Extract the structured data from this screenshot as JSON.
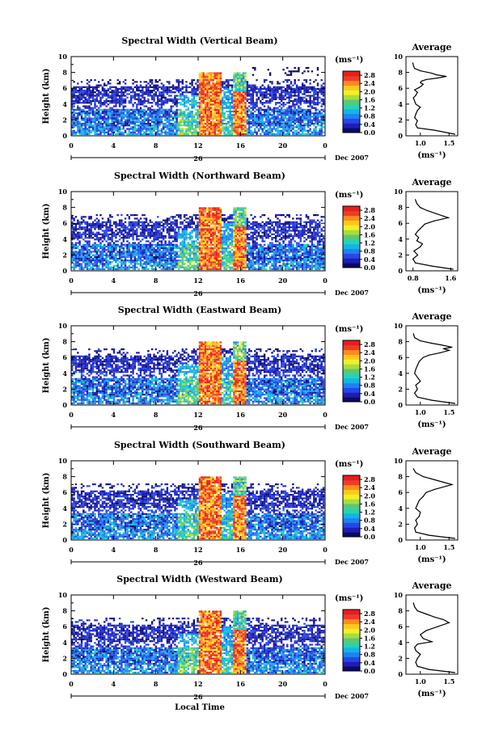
{
  "chart_data": [
    {
      "type": "heatmap",
      "title": "Spectral Width (Vertical Beam)",
      "ylabel": "Height (km)",
      "unit_label": "(ms⁻¹)",
      "date_label": "Dec 2007",
      "day_label": "26",
      "x_ticks": [
        "0",
        "4",
        "8",
        "12",
        "16",
        "20",
        "0"
      ],
      "y_ticks": [
        "0",
        "2",
        "4",
        "6",
        "8",
        "10"
      ],
      "xlim": [
        0,
        24
      ],
      "ylim": [
        0,
        10
      ],
      "colorbar": {
        "ticks": [
          "0.0",
          "0.4",
          "0.8",
          "1.2",
          "1.6",
          "2.0",
          "2.4",
          "2.8"
        ],
        "range": [
          0,
          3.0
        ]
      },
      "average_profile": {
        "title": "Average",
        "xlabel": "(ms⁻¹)",
        "x_ticks": [
          "1.0",
          "1.5"
        ],
        "y_ticks": [
          "0",
          "2",
          "4",
          "6",
          "8",
          "10"
        ],
        "xlim": [
          0.75,
          1.65
        ],
        "ylim": [
          0,
          10
        ],
        "x": [
          1.6,
          1.25,
          0.95,
          0.92,
          0.95,
          0.9,
          0.92,
          0.95,
          1.0,
          0.92,
          0.9,
          0.88,
          0.92,
          0.95,
          0.9,
          0.98,
          1.02,
          1.05,
          1.0,
          1.02,
          1.1,
          1.3,
          1.45,
          1.28,
          1.2,
          1.0,
          0.9,
          0.88,
          0.87
        ],
        "y": [
          0.2,
          0.7,
          1.0,
          1.4,
          1.9,
          2.3,
          2.7,
          3.2,
          3.6,
          4.0,
          4.4,
          4.8,
          5.1,
          5.5,
          5.8,
          6.1,
          6.3,
          6.5,
          6.7,
          6.9,
          7.1,
          7.3,
          7.5,
          7.7,
          7.9,
          8.2,
          8.5,
          8.9,
          9.2
        ]
      }
    },
    {
      "type": "heatmap",
      "title": "Spectral Width (Northward Beam)",
      "ylabel": "Height (km)",
      "unit_label": "(ms⁻¹)",
      "date_label": "Dec 2007",
      "day_label": "26",
      "x_ticks": [
        "0",
        "4",
        "8",
        "12",
        "16",
        "20",
        "0"
      ],
      "y_ticks": [
        "0",
        "2",
        "4",
        "6",
        "8",
        "10"
      ],
      "xlim": [
        0,
        24
      ],
      "ylim": [
        0,
        10
      ],
      "colorbar": {
        "ticks": [
          "0.0",
          "0.4",
          "0.8",
          "1.2",
          "1.6",
          "2.0",
          "2.4",
          "2.8"
        ],
        "range": [
          0,
          3.0
        ]
      },
      "average_profile": {
        "title": "Average",
        "xlabel": "(ms⁻¹)",
        "x_ticks": [
          "0.8",
          "1.6"
        ],
        "y_ticks": [
          "0",
          "2",
          "4",
          "6",
          "8",
          "10"
        ],
        "xlim": [
          0.65,
          1.75
        ],
        "ylim": [
          0,
          10
        ],
        "x": [
          1.65,
          1.2,
          0.85,
          0.8,
          0.9,
          0.82,
          0.95,
          1.0,
          0.88,
          0.92,
          0.85,
          0.9,
          0.95,
          1.0,
          1.05,
          1.15,
          1.25,
          1.4,
          1.55,
          1.45,
          1.3,
          1.1,
          0.95,
          0.88,
          0.85
        ],
        "y": [
          0.2,
          0.6,
          1.0,
          1.5,
          2.0,
          2.5,
          3.0,
          3.4,
          3.8,
          4.2,
          4.6,
          5.0,
          5.3,
          5.6,
          5.9,
          6.1,
          6.3,
          6.5,
          6.7,
          6.9,
          7.2,
          7.6,
          8.0,
          8.5,
          9.0
        ]
      }
    },
    {
      "type": "heatmap",
      "title": "Spectral Width (Eastward Beam)",
      "ylabel": "Height (km)",
      "unit_label": "(ms⁻¹)",
      "date_label": "Dec 2007",
      "day_label": "26",
      "x_ticks": [
        "0",
        "4",
        "8",
        "12",
        "16",
        "20",
        "0"
      ],
      "y_ticks": [
        "0",
        "2",
        "4",
        "6",
        "8",
        "10"
      ],
      "xlim": [
        0,
        24
      ],
      "ylim": [
        0,
        10
      ],
      "colorbar": {
        "ticks": [
          "0.0",
          "0.4",
          "0.8",
          "1.2",
          "1.6",
          "2.0",
          "2.4",
          "2.8"
        ],
        "range": [
          0,
          3.0
        ]
      },
      "average_profile": {
        "title": "Average",
        "xlabel": "(ms⁻¹)",
        "x_ticks": [
          "1.0",
          "1.5"
        ],
        "y_ticks": [
          "0",
          "2",
          "4",
          "6",
          "8",
          "10"
        ],
        "xlim": [
          0.75,
          1.65
        ],
        "ylim": [
          0,
          10
        ],
        "x": [
          1.6,
          1.2,
          0.95,
          0.9,
          0.95,
          0.92,
          1.0,
          0.95,
          0.9,
          0.92,
          0.95,
          0.98,
          1.05,
          1.15,
          1.35,
          1.5,
          1.4,
          1.55,
          1.35,
          1.2,
          1.0,
          0.9,
          0.88
        ],
        "y": [
          0.2,
          0.6,
          1.0,
          1.5,
          2.0,
          2.5,
          3.0,
          3.5,
          4.0,
          4.5,
          5.0,
          5.5,
          6.0,
          6.3,
          6.6,
          6.9,
          7.1,
          7.3,
          7.6,
          7.8,
          8.1,
          8.5,
          9.0
        ]
      }
    },
    {
      "type": "heatmap",
      "title": "Spectral Width (Southward Beam)",
      "ylabel": "Height (km)",
      "unit_label": "(ms⁻¹)",
      "date_label": "Dec 2007",
      "day_label": "26",
      "x_ticks": [
        "0",
        "4",
        "8",
        "12",
        "16",
        "20",
        "0"
      ],
      "y_ticks": [
        "0",
        "2",
        "4",
        "6",
        "8",
        "10"
      ],
      "xlim": [
        0,
        24
      ],
      "ylim": [
        0,
        10
      ],
      "colorbar": {
        "ticks": [
          "0.0",
          "0.4",
          "0.8",
          "1.2",
          "1.6",
          "2.0",
          "2.4",
          "2.8"
        ],
        "range": [
          0,
          3.0
        ]
      },
      "average_profile": {
        "title": "Average",
        "xlabel": "(ms⁻¹)",
        "x_ticks": [
          "1.0",
          "1.5"
        ],
        "y_ticks": [
          "0",
          "2",
          "4",
          "6",
          "8",
          "10"
        ],
        "xlim": [
          0.75,
          1.65
        ],
        "ylim": [
          0,
          10
        ],
        "x": [
          1.6,
          1.15,
          0.92,
          0.9,
          0.95,
          0.92,
          0.98,
          1.0,
          0.92,
          0.95,
          0.98,
          1.05,
          1.1,
          1.25,
          1.45,
          1.55,
          1.4,
          1.25,
          1.05,
          0.92,
          0.88
        ],
        "y": [
          0.2,
          0.6,
          1.0,
          1.5,
          2.0,
          2.5,
          3.0,
          3.5,
          4.0,
          4.5,
          5.0,
          5.5,
          6.0,
          6.4,
          6.8,
          7.0,
          7.3,
          7.6,
          8.0,
          8.5,
          9.0
        ]
      }
    },
    {
      "type": "heatmap",
      "title": "Spectral Width (Westward Beam)",
      "ylabel": "Height (km)",
      "xlabel": "Local Time",
      "unit_label": "(ms⁻¹)",
      "date_label": "Dec 2007",
      "day_label": "26",
      "x_ticks": [
        "0",
        "4",
        "8",
        "12",
        "16",
        "20",
        "0"
      ],
      "y_ticks": [
        "0",
        "2",
        "4",
        "6",
        "8",
        "10"
      ],
      "xlim": [
        0,
        24
      ],
      "ylim": [
        0,
        10
      ],
      "colorbar": {
        "ticks": [
          "0.0",
          "0.4",
          "0.8",
          "1.2",
          "1.6",
          "2.0",
          "2.4",
          "2.8"
        ],
        "range": [
          0,
          3.0
        ]
      },
      "average_profile": {
        "title": "Average",
        "xlabel": "(ms⁻¹)",
        "x_ticks": [
          "1.0",
          "1.5"
        ],
        "y_ticks": [
          "0",
          "2",
          "4",
          "6",
          "8",
          "10"
        ],
        "xlim": [
          0.75,
          1.65
        ],
        "ylim": [
          0,
          10
        ],
        "x": [
          1.6,
          1.15,
          0.95,
          0.92,
          0.95,
          1.0,
          0.92,
          0.9,
          0.95,
          1.2,
          1.05,
          1.0,
          1.1,
          1.3,
          1.5,
          1.4,
          1.25,
          1.1,
          0.95,
          0.9,
          0.88
        ],
        "y": [
          0.2,
          0.6,
          1.0,
          1.5,
          2.0,
          2.5,
          3.0,
          3.4,
          3.8,
          4.1,
          4.5,
          5.0,
          5.5,
          6.0,
          6.5,
          6.9,
          7.2,
          7.6,
          8.0,
          8.5,
          9.0
        ]
      }
    }
  ],
  "colors": {
    "colorbar": [
      "#0a0a64",
      "#1e1eb4",
      "#2846e6",
      "#1e82f0",
      "#14b4e6",
      "#28d2b4",
      "#5ac878",
      "#aadc3c",
      "#f0f028",
      "#ffc81e",
      "#ff8c1e",
      "#f03c28",
      "#e61e1e"
    ]
  }
}
